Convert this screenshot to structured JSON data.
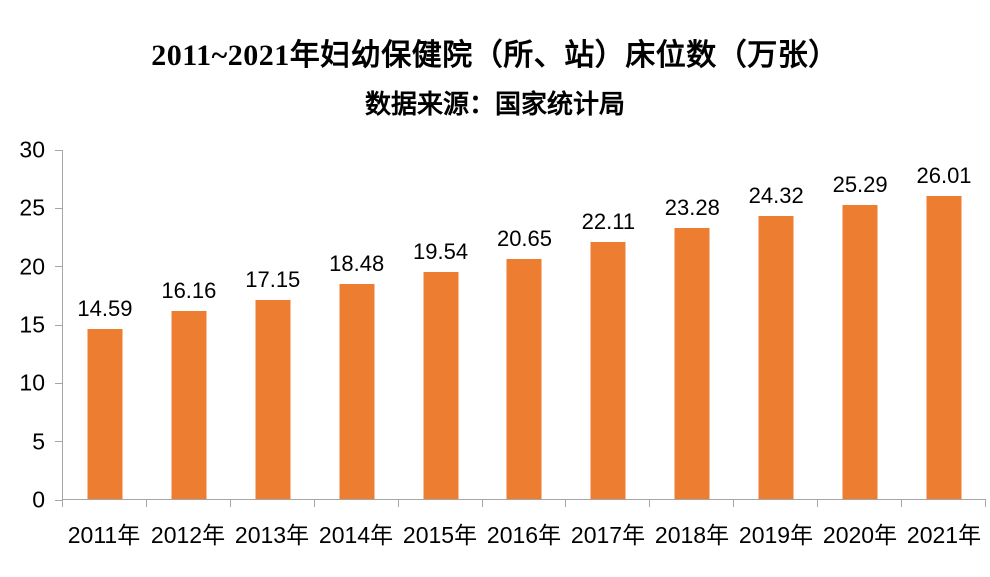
{
  "chart_data": {
    "type": "bar",
    "title": "2011~2021年妇幼保健院（所、站）床位数（万张）",
    "subtitle": "数据来源：国家统计局",
    "categories": [
      "2011年",
      "2012年",
      "2013年",
      "2014年",
      "2015年",
      "2016年",
      "2017年",
      "2018年",
      "2019年",
      "2020年",
      "2021年"
    ],
    "values": [
      14.59,
      16.16,
      17.15,
      18.48,
      19.54,
      20.65,
      22.11,
      23.28,
      24.32,
      25.29,
      26.01
    ],
    "xlabel": "",
    "ylabel": "",
    "ylim": [
      0,
      30
    ],
    "yticks": [
      0,
      5,
      10,
      15,
      20,
      25,
      30
    ],
    "grid": false,
    "legend": false,
    "data_labels": true,
    "bar_color": "#ED7D31",
    "axis_color": "#A6A6A6",
    "text_color": "#000000"
  }
}
